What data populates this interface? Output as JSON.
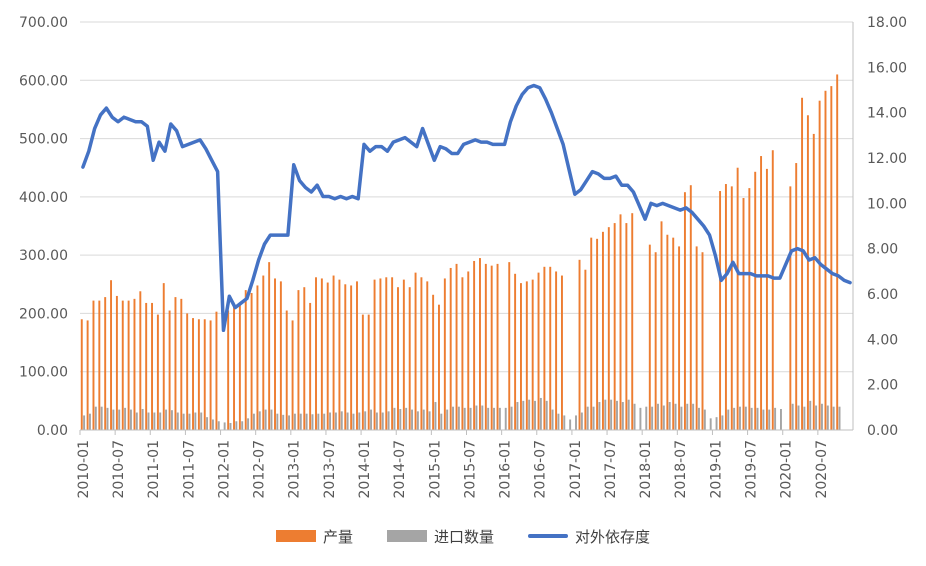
{
  "chart_data": {
    "type": "bar+line",
    "title": "",
    "x": [
      "2010-01",
      "2010-02",
      "2010-03",
      "2010-04",
      "2010-05",
      "2010-06",
      "2010-07",
      "2010-08",
      "2010-09",
      "2010-10",
      "2010-11",
      "2010-12",
      "2011-01",
      "2011-02",
      "2011-03",
      "2011-04",
      "2011-05",
      "2011-06",
      "2011-07",
      "2011-08",
      "2011-09",
      "2011-10",
      "2011-11",
      "2011-12",
      "2012-01",
      "2012-02",
      "2012-03",
      "2012-04",
      "2012-05",
      "2012-06",
      "2012-07",
      "2012-08",
      "2012-09",
      "2012-10",
      "2012-11",
      "2012-12",
      "2013-01",
      "2013-02",
      "2013-03",
      "2013-04",
      "2013-05",
      "2013-06",
      "2013-07",
      "2013-08",
      "2013-09",
      "2013-10",
      "2013-11",
      "2013-12",
      "2014-01",
      "2014-02",
      "2014-03",
      "2014-04",
      "2014-05",
      "2014-06",
      "2014-07",
      "2014-08",
      "2014-09",
      "2014-10",
      "2014-11",
      "2014-12",
      "2015-01",
      "2015-02",
      "2015-03",
      "2015-04",
      "2015-05",
      "2015-06",
      "2015-07",
      "2015-08",
      "2015-09",
      "2015-10",
      "2015-11",
      "2015-12",
      "2016-01",
      "2016-02",
      "2016-03",
      "2016-04",
      "2016-05",
      "2016-06",
      "2016-07",
      "2016-08",
      "2016-09",
      "2016-10",
      "2016-11",
      "2016-12",
      "2017-01",
      "2017-02",
      "2017-03",
      "2017-04",
      "2017-05",
      "2017-06",
      "2017-07",
      "2017-08",
      "2017-09",
      "2017-10",
      "2017-11",
      "2017-12",
      "2018-01",
      "2018-02",
      "2018-03",
      "2018-04",
      "2018-05",
      "2018-06",
      "2018-07",
      "2018-08",
      "2018-09",
      "2018-10",
      "2018-11",
      "2018-12",
      "2019-01",
      "2019-02",
      "2019-03",
      "2019-04",
      "2019-05",
      "2019-06",
      "2019-07",
      "2019-08",
      "2019-09",
      "2019-10",
      "2019-11",
      "2019-12",
      "2020-01",
      "2020-02",
      "2020-03",
      "2020-04",
      "2020-05",
      "2020-06",
      "2020-07",
      "2020-08",
      "2020-09",
      "2020-10",
      "2020-11",
      "2020-12"
    ],
    "x_tick_labels": [
      "2010-01",
      "2010-07",
      "2011-01",
      "2011-07",
      "2012-01",
      "2012-07",
      "2013-01",
      "2013-07",
      "2014-01",
      "2014-07",
      "2015-01",
      "2015-07",
      "2016-01",
      "2016-07",
      "2017-01",
      "2017-07",
      "2018-01",
      "2018-07",
      "2019-01",
      "2019-07",
      "2020-01",
      "2020-07"
    ],
    "y_left": {
      "range": [
        0,
        700
      ],
      "ticks": [
        "0.00",
        "100.00",
        "200.00",
        "300.00",
        "400.00",
        "500.00",
        "600.00",
        "700.00"
      ]
    },
    "y_right": {
      "range": [
        0,
        18
      ],
      "ticks": [
        "0.00",
        "2.00",
        "4.00",
        "6.00",
        "8.00",
        "10.00",
        "12.00",
        "14.00",
        "16.00",
        "18.00"
      ]
    },
    "grid": "horizontal",
    "legend_position": "bottom",
    "series": [
      {
        "name": "产量",
        "kind": "bar",
        "axis": "left",
        "color": "#ED7D31",
        "values": [
          190,
          188,
          222,
          222,
          228,
          257,
          230,
          222,
          222,
          225,
          238,
          218,
          218,
          198,
          252,
          205,
          228,
          225,
          200,
          192,
          190,
          190,
          188,
          203,
          0,
          205,
          212,
          215,
          240,
          235,
          248,
          265,
          288,
          260,
          255,
          205,
          188,
          240,
          245,
          218,
          262,
          260,
          253,
          265,
          258,
          250,
          248,
          255,
          198,
          198,
          258,
          260,
          262,
          262,
          245,
          258,
          245,
          270,
          262,
          255,
          232,
          215,
          260,
          278,
          285,
          262,
          272,
          290,
          295,
          285,
          282,
          285,
          0,
          288,
          268,
          252,
          255,
          258,
          270,
          280,
          280,
          272,
          265,
          0,
          0,
          292,
          275,
          330,
          328,
          340,
          348,
          355,
          370,
          355,
          372,
          0,
          0,
          318,
          305,
          358,
          335,
          330,
          315,
          408,
          420,
          315,
          305,
          0,
          0,
          410,
          422,
          418,
          450,
          398,
          415,
          443,
          470,
          448,
          480,
          0,
          0,
          418,
          458,
          570,
          540,
          508,
          565,
          582,
          590,
          610,
          0,
          0
        ]
      },
      {
        "name": "进口数量",
        "kind": "bar",
        "axis": "left",
        "color": "#A5A5A5",
        "values": [
          25,
          28,
          40,
          40,
          38,
          35,
          35,
          38,
          35,
          30,
          36,
          30,
          30,
          30,
          35,
          34,
          30,
          28,
          28,
          30,
          30,
          22,
          18,
          15,
          13,
          12,
          15,
          15,
          20,
          28,
          32,
          35,
          35,
          28,
          26,
          25,
          28,
          28,
          28,
          27,
          28,
          28,
          30,
          30,
          32,
          30,
          28,
          30,
          32,
          35,
          30,
          30,
          32,
          38,
          36,
          38,
          35,
          32,
          35,
          32,
          48,
          28,
          35,
          40,
          40,
          38,
          38,
          42,
          42,
          38,
          38,
          38,
          38,
          40,
          48,
          50,
          52,
          50,
          55,
          50,
          35,
          28,
          25,
          18,
          25,
          30,
          40,
          40,
          48,
          52,
          52,
          50,
          48,
          52,
          45,
          38,
          40,
          40,
          45,
          42,
          48,
          45,
          40,
          45,
          45,
          38,
          35,
          20,
          22,
          25,
          35,
          38,
          40,
          40,
          38,
          38,
          35,
          35,
          38,
          36,
          0,
          45,
          42,
          40,
          50,
          42,
          45,
          42,
          40,
          40,
          0,
          0
        ]
      },
      {
        "name": "对外依存度",
        "kind": "line",
        "axis": "right",
        "color": "#4472C4",
        "values": [
          11.6,
          12.3,
          13.3,
          13.9,
          14.2,
          13.8,
          13.6,
          13.8,
          13.7,
          13.6,
          13.6,
          13.4,
          11.9,
          12.7,
          12.3,
          13.5,
          13.2,
          12.5,
          12.6,
          12.7,
          12.8,
          12.4,
          11.9,
          11.4,
          4.4,
          5.9,
          5.4,
          5.6,
          5.8,
          6.6,
          7.5,
          8.2,
          8.6,
          8.6,
          8.6,
          8.6,
          11.7,
          11.0,
          10.7,
          10.5,
          10.8,
          10.3,
          10.3,
          10.2,
          10.3,
          10.2,
          10.3,
          10.2,
          12.6,
          12.3,
          12.5,
          12.5,
          12.3,
          12.7,
          12.8,
          12.9,
          12.7,
          12.5,
          13.3,
          12.6,
          11.9,
          12.5,
          12.4,
          12.2,
          12.2,
          12.6,
          12.7,
          12.8,
          12.7,
          12.7,
          12.6,
          12.6,
          12.6,
          13.6,
          14.3,
          14.8,
          15.1,
          15.2,
          15.1,
          14.6,
          14.0,
          13.3,
          12.6,
          11.5,
          10.4,
          10.6,
          11.0,
          11.4,
          11.3,
          11.1,
          11.1,
          11.2,
          10.8,
          10.8,
          10.5,
          9.9,
          9.3,
          10.0,
          9.9,
          10.0,
          9.9,
          9.8,
          9.7,
          9.8,
          9.6,
          9.3,
          9.0,
          8.6,
          7.7,
          6.6,
          6.9,
          7.4,
          6.9,
          6.9,
          6.9,
          6.8,
          6.8,
          6.8,
          6.7,
          6.7,
          7.3,
          7.9,
          8.0,
          7.9,
          7.5,
          7.6,
          7.3,
          7.1,
          6.9,
          6.8,
          6.6,
          6.5
        ]
      }
    ]
  },
  "legend": {
    "production": "产量",
    "imports": "进口数量",
    "dependence": "对外依存度"
  },
  "colors": {
    "production": "#ED7D31",
    "imports": "#A5A5A5",
    "dependence": "#4472C4",
    "grid": "#D9D9D9",
    "axis": "#BFBFBF"
  }
}
